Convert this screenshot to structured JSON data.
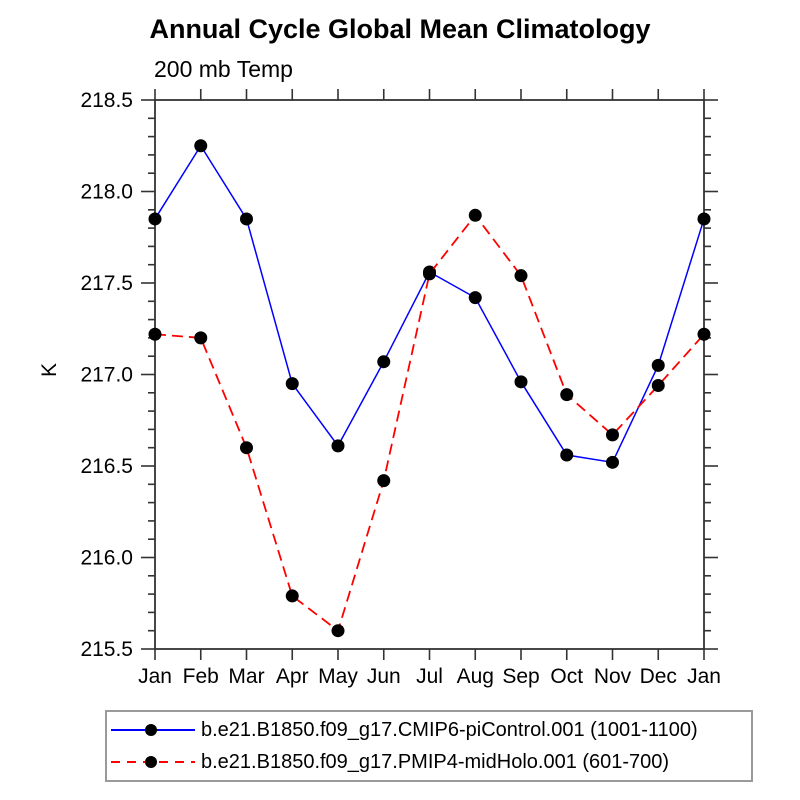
{
  "chart_data": {
    "type": "line",
    "title": "Annual Cycle Global Mean Climatology",
    "subtitle": "200 mb Temp",
    "ylabel": "K",
    "xlabel": "",
    "categories": [
      "Jan",
      "Feb",
      "Mar",
      "Apr",
      "May",
      "Jun",
      "Jul",
      "Aug",
      "Sep",
      "Oct",
      "Nov",
      "Dec",
      "Jan"
    ],
    "ylim": [
      215.5,
      218.5
    ],
    "ytick_labels": [
      "215.5",
      "216.0",
      "216.5",
      "217.0",
      "217.5",
      "218.0",
      "218.5"
    ],
    "ytick_major_step": 0.5,
    "ytick_minor_step": 0.1,
    "grid": false,
    "legend_position": "bottom",
    "axis_color": "#333333",
    "text_color": "#000000",
    "marker_color": "#000000",
    "background": "#ffffff",
    "series": [
      {
        "name": "b.e21.B1850.f09_g17.CMIP6-piControl.001 (1001-1100)",
        "color": "#0000ff",
        "line_style": "solid",
        "marker": "filled-circle",
        "values": [
          217.85,
          218.25,
          217.85,
          216.95,
          216.61,
          217.07,
          217.56,
          217.42,
          216.96,
          216.56,
          216.52,
          217.05,
          217.85
        ]
      },
      {
        "name": "b.e21.B1850.f09_g17.PMIP4-midHolo.001 (601-700)",
        "color": "#ff0000",
        "line_style": "dashed",
        "marker": "filled-circle",
        "values": [
          217.22,
          217.2,
          216.6,
          215.79,
          215.6,
          216.42,
          217.55,
          217.87,
          217.54,
          216.89,
          216.67,
          216.94,
          217.22
        ]
      }
    ]
  }
}
